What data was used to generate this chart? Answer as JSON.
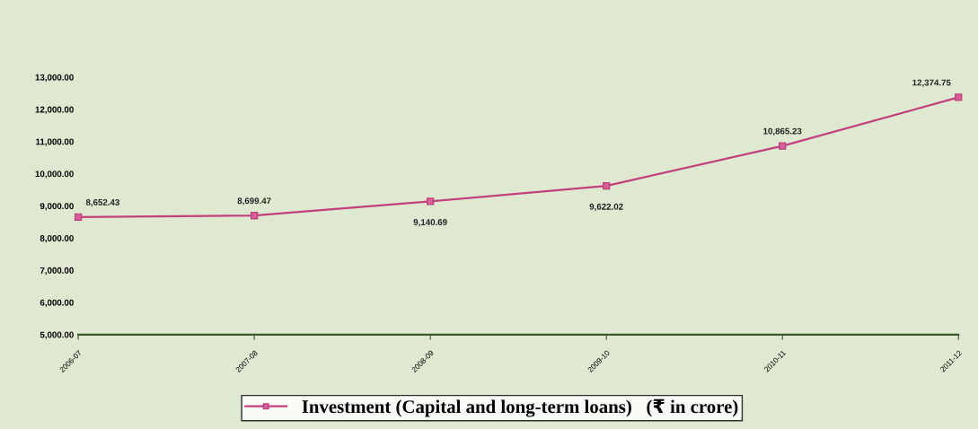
{
  "chart_data": {
    "type": "line",
    "categories": [
      "2006-07",
      "2007-08",
      "2008-09",
      "2009-10",
      "2010-11",
      "2011-12"
    ],
    "series": [
      {
        "name": "Investment (Capital and long-term loans)   (₹ in crore)",
        "color": "#c2407c",
        "values": [
          8652.43,
          8699.47,
          9140.69,
          9622.02,
          10865.23,
          12374.75
        ],
        "value_labels": [
          "8,652.43",
          "8,699.47",
          "9,140.69",
          "9,622.02",
          "10,865.23",
          "12,374.75"
        ]
      }
    ],
    "ylim": [
      5000,
      13000
    ],
    "yticks": [
      {
        "value": 5000,
        "label": "5,000.00"
      },
      {
        "value": 6000,
        "label": "6,000.00"
      },
      {
        "value": 7000,
        "label": "7,000.00"
      },
      {
        "value": 8000,
        "label": "8,000.00"
      },
      {
        "value": 9000,
        "label": "9,000.00"
      },
      {
        "value": 10000,
        "label": "10,000.00"
      },
      {
        "value": 11000,
        "label": "11,000.00"
      },
      {
        "value": 12000,
        "label": "12,000.00"
      },
      {
        "value": 13000,
        "label": "13,000.00"
      }
    ],
    "marker": "square",
    "grid": false,
    "legend": "bottom"
  }
}
